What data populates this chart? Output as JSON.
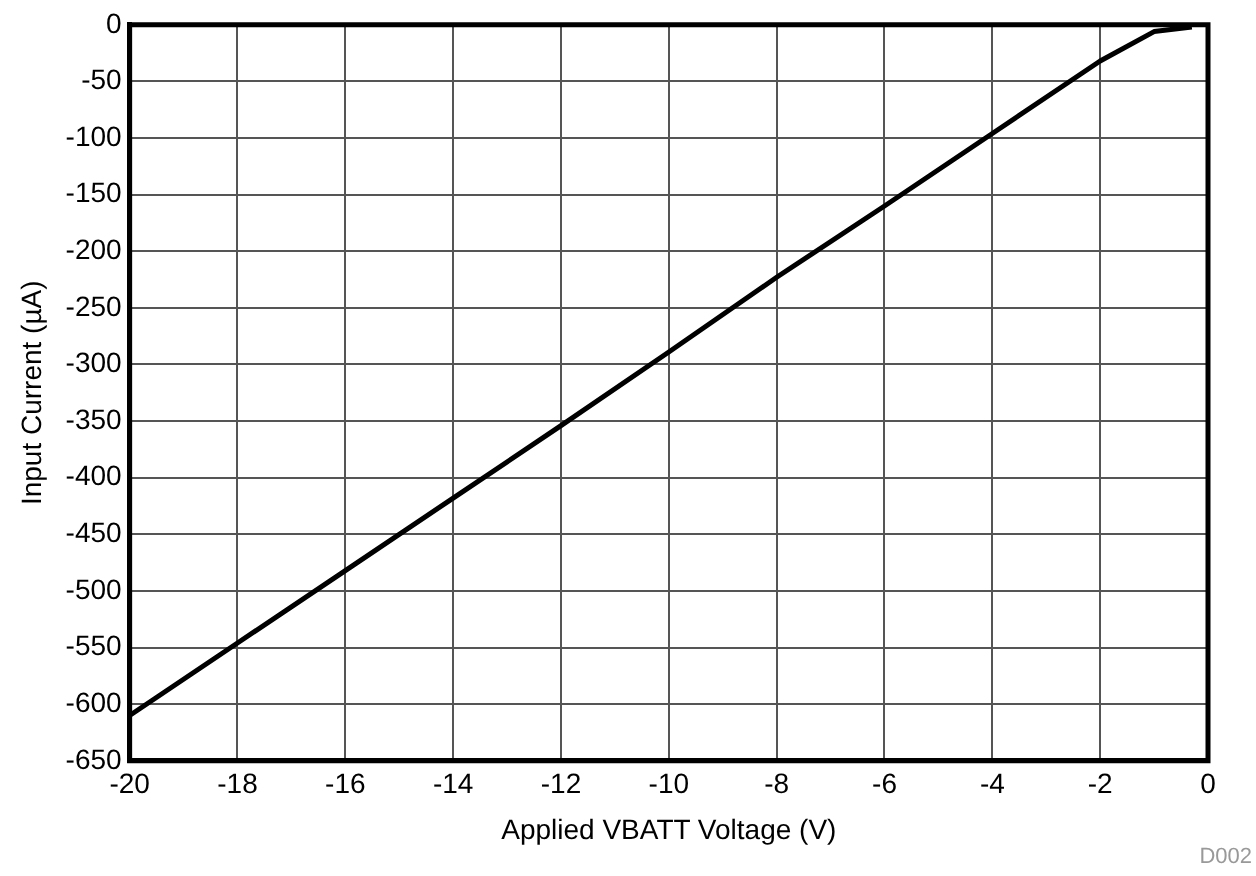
{
  "chart_data": {
    "type": "line",
    "xlabel": "Applied VBATT Voltage (V)",
    "ylabel": "Input Current (µA)",
    "annotations": [
      "D002"
    ],
    "x": [
      -20,
      -18,
      -16,
      -14,
      -12,
      -10,
      -8,
      -6,
      -4,
      -2,
      -1,
      -0.3
    ],
    "series": [
      {
        "color": "#000000",
        "values": [
          -610,
          -546,
          -482,
          -418,
          -354,
          -289,
          -223,
          -160,
          -96,
          -32,
          -6,
          -2
        ]
      }
    ],
    "xlim": [
      -20,
      0
    ],
    "xticks": [
      -20,
      -18,
      -16,
      -14,
      -12,
      -10,
      -8,
      -6,
      -4,
      -2,
      0
    ],
    "ylim": [
      -650,
      0
    ],
    "yticks": [
      -650,
      -600,
      -550,
      -500,
      -450,
      -400,
      -350,
      -300,
      -250,
      -200,
      -150,
      -100,
      -50,
      0
    ],
    "grid": true,
    "legend": false,
    "marker": "none",
    "line_style": "solid"
  }
}
